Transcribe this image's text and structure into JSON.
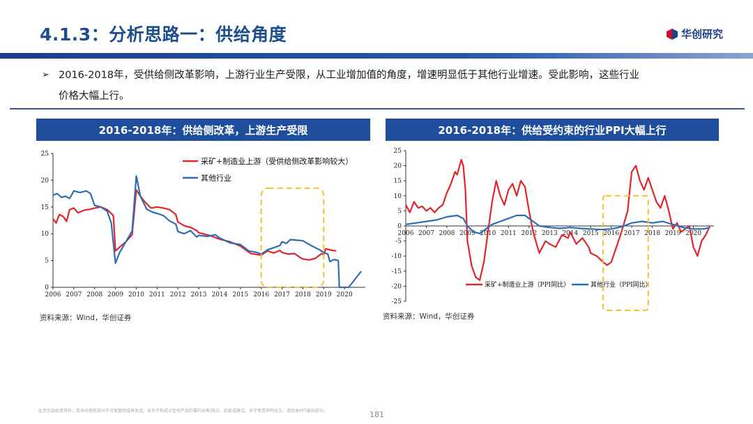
{
  "slide": {
    "title": "4.1.3：分析思路一：供给角度",
    "logo_text": "华创研究",
    "bullet_line1": "2016-2018年，受供给侧改革影响，上游行业生产受限，从工业增加值的角度，增速明显低于其他行业增速。受此影响，这些行业",
    "bullet_line2": "价格大幅上行。",
    "page_number": "181",
    "disclaimer": "此页包含机密资料，若未经授权部分不可被复制或再发送。本页不构成对任何产品的要约出售/购买、招揽或建议。关于免责声明全文，请见本PPT最后部分。",
    "colors": {
      "brand_blue": "#1f4e9a",
      "title_blue": "#1f4e8c",
      "series_red": "#e0252b",
      "series_blue": "#2e6db4",
      "highlight_yellow": "#f2c230"
    }
  },
  "chart_data": [
    {
      "type": "line",
      "panel_title": "2016-2018年：供给侧改革，上游生产受限",
      "source": "资料来源：Wind，华创证券",
      "x_ticks": [
        "2006",
        "2007",
        "2008",
        "2009",
        "2010",
        "2011",
        "2012",
        "2013",
        "2014",
        "2015",
        "2016",
        "2017",
        "2018",
        "2019",
        "2020"
      ],
      "y_ticks": [
        "0",
        "5",
        "10",
        "15",
        "20",
        "25"
      ],
      "ylim": [
        0,
        25
      ],
      "xlim": [
        2006,
        2021
      ],
      "highlight": {
        "x_from": 2016.0,
        "x_to": 2019.0,
        "y_from": 0,
        "y_to": 18.5
      },
      "series": [
        {
          "name": "采矿+制造业上游（受供给侧改革影响较大）",
          "color": "#e0252b",
          "points": [
            [
              2006.0,
              12.8
            ],
            [
              2006.15,
              12
            ],
            [
              2006.3,
              13.6
            ],
            [
              2006.5,
              13.2
            ],
            [
              2006.65,
              12.3
            ],
            [
              2006.8,
              14.5
            ],
            [
              2007.0,
              14.8
            ],
            [
              2007.2,
              13.9
            ],
            [
              2007.5,
              14.4
            ],
            [
              2007.8,
              14.6
            ],
            [
              2008.0,
              14.8
            ],
            [
              2008.3,
              15
            ],
            [
              2008.6,
              14.5
            ],
            [
              2008.9,
              13.4
            ],
            [
              2009.0,
              6.8
            ],
            [
              2009.2,
              7.5
            ],
            [
              2009.5,
              8.5
            ],
            [
              2009.8,
              9.8
            ],
            [
              2010.0,
              18.2
            ],
            [
              2010.15,
              17.3
            ],
            [
              2010.4,
              16
            ],
            [
              2010.7,
              14.8
            ],
            [
              2011.0,
              15
            ],
            [
              2011.3,
              14.8
            ],
            [
              2011.6,
              14.5
            ],
            [
              2011.9,
              13.6
            ],
            [
              2012.0,
              12.2
            ],
            [
              2012.3,
              11.5
            ],
            [
              2012.6,
              11.2
            ],
            [
              2012.9,
              10.6
            ],
            [
              2013.0,
              10.2
            ],
            [
              2013.5,
              9.7
            ],
            [
              2014.0,
              9
            ],
            [
              2014.5,
              8.5
            ],
            [
              2015.0,
              7.7
            ],
            [
              2015.5,
              6.3
            ],
            [
              2016.0,
              6
            ],
            [
              2016.3,
              6.8
            ],
            [
              2016.6,
              6.4
            ],
            [
              2016.9,
              6.9
            ],
            [
              2017.0,
              6.5
            ],
            [
              2017.3,
              6.2
            ],
            [
              2017.6,
              6.3
            ],
            [
              2017.9,
              5.5
            ],
            [
              2018.0,
              5.3
            ],
            [
              2018.3,
              5.1
            ],
            [
              2018.6,
              5.4
            ],
            [
              2018.9,
              6.3
            ],
            [
              2019.0,
              6.1
            ],
            [
              2019.1,
              7.2
            ],
            [
              2019.4,
              6.9
            ],
            [
              2019.6,
              6.8
            ]
          ]
        },
        {
          "name": "其他行业",
          "color": "#2e6db4",
          "points": [
            [
              2006.0,
              17.2
            ],
            [
              2006.2,
              17.5
            ],
            [
              2006.4,
              16.8
            ],
            [
              2006.6,
              17
            ],
            [
              2006.8,
              16.6
            ],
            [
              2007.0,
              18
            ],
            [
              2007.3,
              17.7
            ],
            [
              2007.6,
              18
            ],
            [
              2007.8,
              17.5
            ],
            [
              2008.0,
              15.3
            ],
            [
              2008.3,
              15
            ],
            [
              2008.6,
              14.2
            ],
            [
              2008.8,
              12
            ],
            [
              2009.0,
              4.5
            ],
            [
              2009.2,
              6.5
            ],
            [
              2009.5,
              8.5
            ],
            [
              2009.8,
              10.5
            ],
            [
              2010.0,
              20.8
            ],
            [
              2010.2,
              17
            ],
            [
              2010.5,
              14.6
            ],
            [
              2010.8,
              14
            ],
            [
              2011.0,
              13.8
            ],
            [
              2011.3,
              13.4
            ],
            [
              2011.6,
              12.4
            ],
            [
              2011.9,
              11.8
            ],
            [
              2012.0,
              10.4
            ],
            [
              2012.3,
              10
            ],
            [
              2012.6,
              10.6
            ],
            [
              2012.9,
              9.4
            ],
            [
              2013.0,
              9.7
            ],
            [
              2013.4,
              9.5
            ],
            [
              2013.8,
              9.8
            ],
            [
              2014.0,
              9.2
            ],
            [
              2014.5,
              8.3
            ],
            [
              2015.0,
              8
            ],
            [
              2015.4,
              6.8
            ],
            [
              2015.8,
              6.5
            ],
            [
              2016.0,
              6.2
            ],
            [
              2016.3,
              7
            ],
            [
              2016.6,
              7.4
            ],
            [
              2016.9,
              7.8
            ],
            [
              2017.0,
              8.5
            ],
            [
              2017.2,
              8.2
            ],
            [
              2017.4,
              8.9
            ],
            [
              2017.7,
              8.8
            ],
            [
              2018.0,
              8.7
            ],
            [
              2018.3,
              8
            ],
            [
              2018.6,
              7.4
            ],
            [
              2018.8,
              7
            ],
            [
              2019.0,
              6.5
            ],
            [
              2019.2,
              6.2
            ],
            [
              2019.3,
              4.8
            ],
            [
              2019.5,
              5.2
            ],
            [
              2019.7,
              5
            ],
            [
              2019.75,
              0
            ],
            [
              2020.2,
              0
            ],
            [
              2020.5,
              1.5
            ],
            [
              2020.8,
              3
            ]
          ]
        }
      ]
    },
    {
      "type": "line",
      "panel_title": "2016-2018年：供给受约束的行业PPI大幅上行",
      "source": "资料来源：Wind，华创证券",
      "x_ticks": [
        "2006",
        "2007",
        "2008",
        "2009",
        "2010",
        "2011",
        "2012",
        "2013",
        "2014",
        "2015",
        "2016",
        "2017",
        "2018",
        "2019",
        "2020"
      ],
      "y_ticks": [
        "25",
        "20",
        "15",
        "10",
        "5",
        "0",
        "-5",
        "-10",
        "-15",
        "-20",
        "-25"
      ],
      "ylim": [
        -25,
        25
      ],
      "xlim": [
        2006,
        2021
      ],
      "highlight": {
        "x_from": 2015.6,
        "x_to": 2017.8,
        "y_from": -28,
        "y_to": 10
      },
      "series": [
        {
          "name": "采矿+制造业上游（PPI同比）",
          "color": "#e0252b",
          "points": [
            [
              2006.0,
              7
            ],
            [
              2006.2,
              4.5
            ],
            [
              2006.4,
              8
            ],
            [
              2006.6,
              6
            ],
            [
              2006.8,
              6.5
            ],
            [
              2007.0,
              5
            ],
            [
              2007.2,
              6
            ],
            [
              2007.4,
              4.5
            ],
            [
              2007.6,
              6
            ],
            [
              2007.8,
              7
            ],
            [
              2008.0,
              11
            ],
            [
              2008.2,
              14
            ],
            [
              2008.4,
              18
            ],
            [
              2008.5,
              17
            ],
            [
              2008.7,
              22
            ],
            [
              2008.8,
              20
            ],
            [
              2008.9,
              12
            ],
            [
              2009.0,
              -5
            ],
            [
              2009.2,
              -13
            ],
            [
              2009.4,
              -17
            ],
            [
              2009.6,
              -18
            ],
            [
              2009.8,
              -12
            ],
            [
              2010.0,
              -2
            ],
            [
              2010.2,
              8
            ],
            [
              2010.4,
              15
            ],
            [
              2010.6,
              10
            ],
            [
              2010.8,
              7
            ],
            [
              2011.0,
              12
            ],
            [
              2011.2,
              14
            ],
            [
              2011.4,
              10
            ],
            [
              2011.6,
              15
            ],
            [
              2011.8,
              13
            ],
            [
              2012.0,
              5
            ],
            [
              2012.2,
              -2
            ],
            [
              2012.5,
              -9
            ],
            [
              2012.8,
              -5
            ],
            [
              2013.0,
              -6
            ],
            [
              2013.3,
              -7
            ],
            [
              2013.6,
              -3
            ],
            [
              2013.9,
              -4
            ],
            [
              2014.0,
              -2
            ],
            [
              2014.3,
              -6
            ],
            [
              2014.6,
              -4
            ],
            [
              2014.9,
              -7
            ],
            [
              2015.0,
              -9
            ],
            [
              2015.3,
              -10
            ],
            [
              2015.6,
              -12
            ],
            [
              2015.8,
              -13
            ],
            [
              2016.0,
              -12
            ],
            [
              2016.2,
              -8
            ],
            [
              2016.5,
              -2
            ],
            [
              2016.8,
              5
            ],
            [
              2017.0,
              18
            ],
            [
              2017.2,
              20
            ],
            [
              2017.4,
              15
            ],
            [
              2017.6,
              12
            ],
            [
              2017.8,
              16
            ],
            [
              2018.0,
              12
            ],
            [
              2018.2,
              8
            ],
            [
              2018.4,
              6
            ],
            [
              2018.6,
              10
            ],
            [
              2018.8,
              5
            ],
            [
              2019.0,
              -1
            ],
            [
              2019.2,
              1
            ],
            [
              2019.4,
              -2
            ],
            [
              2019.6,
              -1
            ],
            [
              2019.8,
              0
            ],
            [
              2020.0,
              -7
            ],
            [
              2020.2,
              -10
            ],
            [
              2020.4,
              -5
            ],
            [
              2020.6,
              -3
            ],
            [
              2020.8,
              0
            ]
          ]
        },
        {
          "name": "其他行业（PPI同比）",
          "color": "#2e6db4",
          "points": [
            [
              2006.0,
              0.5
            ],
            [
              2006.5,
              1
            ],
            [
              2007.0,
              1.5
            ],
            [
              2007.5,
              2
            ],
            [
              2008.0,
              3
            ],
            [
              2008.5,
              3.5
            ],
            [
              2008.8,
              2.5
            ],
            [
              2009.0,
              0
            ],
            [
              2009.3,
              -2
            ],
            [
              2009.6,
              -2.5
            ],
            [
              2009.9,
              -1
            ],
            [
              2010.2,
              0.5
            ],
            [
              2010.6,
              1.5
            ],
            [
              2011.0,
              2.5
            ],
            [
              2011.4,
              3.5
            ],
            [
              2011.8,
              3.5
            ],
            [
              2012.0,
              2.5
            ],
            [
              2012.5,
              0
            ],
            [
              2013.0,
              -0.5
            ],
            [
              2013.5,
              -0.8
            ],
            [
              2014.0,
              -0.5
            ],
            [
              2014.5,
              -0.8
            ],
            [
              2015.0,
              -1
            ],
            [
              2015.5,
              -1.2
            ],
            [
              2016.0,
              -1
            ],
            [
              2016.5,
              -0.3
            ],
            [
              2017.0,
              1
            ],
            [
              2017.5,
              1.5
            ],
            [
              2018.0,
              1
            ],
            [
              2018.5,
              1.5
            ],
            [
              2019.0,
              0.5
            ],
            [
              2019.5,
              -0.5
            ],
            [
              2020.0,
              -1
            ],
            [
              2020.5,
              -1
            ],
            [
              2020.8,
              -0.5
            ]
          ]
        }
      ]
    }
  ]
}
